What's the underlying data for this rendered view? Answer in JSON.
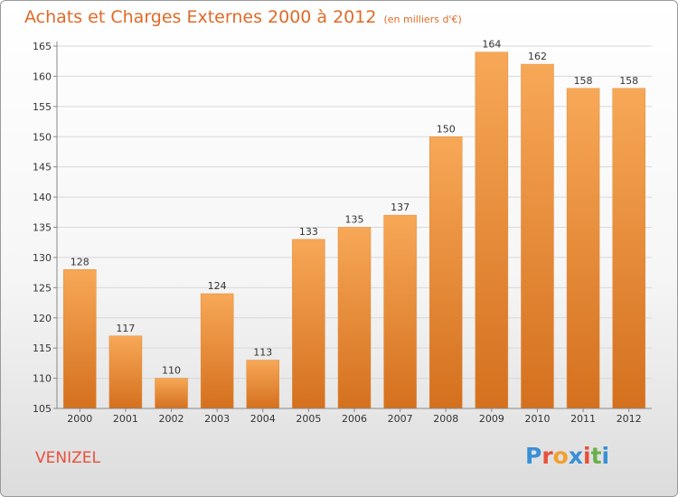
{
  "header": {
    "title": "Achats et Charges Externes 2000 à 2012",
    "subtitle": "(en milliers d'€)"
  },
  "footer": {
    "place": "VENIZEL",
    "brand": "Proxiti",
    "brand_colors": [
      "#3a8fd6",
      "#e8503a",
      "#f0a030",
      "#3a8fd6",
      "#e8503a",
      "#6ab04c",
      "#3a8fd6"
    ]
  },
  "colors": {
    "bar_top": "#f7a857",
    "bar_bottom": "#d4701e",
    "grid": "#d8d8d8",
    "axis": "#888888"
  },
  "chart_data": {
    "type": "bar",
    "title": "Achats et Charges Externes 2000 à 2012",
    "subtitle": "(en milliers d'€)",
    "categories": [
      "2000",
      "2001",
      "2002",
      "2003",
      "2004",
      "2005",
      "2006",
      "2007",
      "2008",
      "2009",
      "2010",
      "2011",
      "2012"
    ],
    "values": [
      128,
      117,
      110,
      124,
      113,
      133,
      135,
      137,
      150,
      164,
      162,
      158,
      158
    ],
    "ylim": [
      105,
      165
    ],
    "yticks": [
      105,
      110,
      115,
      120,
      125,
      130,
      135,
      140,
      145,
      150,
      155,
      160,
      165
    ],
    "grid": true,
    "data_labels": true
  }
}
